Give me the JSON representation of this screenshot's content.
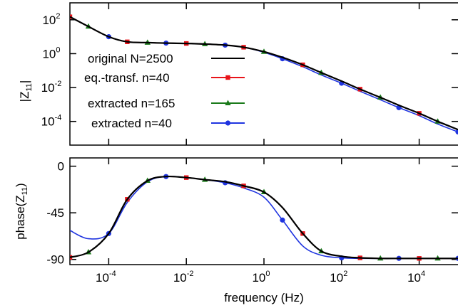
{
  "chart_data": [
    {
      "type": "line",
      "panel": "top",
      "ylabel": "|Z",
      "ylabel_sub": "11",
      "ylabel_suffix": "|",
      "x_scale": "log",
      "y_scale": "log",
      "xlim": [
        1e-05,
        100000
      ],
      "ylim": [
        4e-06,
        1000
      ],
      "y_ticks": [
        {
          "value": 100,
          "base": "10",
          "exp": "2"
        },
        {
          "value": 1,
          "base": "10",
          "exp": "0"
        },
        {
          "value": 0.01,
          "base": "10",
          "exp": "-2"
        },
        {
          "value": 0.0001,
          "base": "10",
          "exp": "-4"
        }
      ],
      "legend_position": "left-center",
      "series": [
        {
          "name": "original N=2500",
          "color": "#000000",
          "marker": "none",
          "x": [
            1e-05,
            3e-05,
            0.0001,
            0.0003,
            0.001,
            0.003,
            0.01,
            0.03,
            0.1,
            0.3,
            1,
            3,
            10,
            30,
            100,
            300,
            1000,
            3000,
            10000,
            30000,
            100000
          ],
          "y": [
            150,
            40,
            10,
            5,
            4.5,
            4.2,
            4,
            3.7,
            3.2,
            2.4,
            1.3,
            0.6,
            0.22,
            0.075,
            0.024,
            0.008,
            0.0026,
            0.0009,
            0.0003,
            0.0001,
            3.3e-05
          ]
        },
        {
          "name": "eq.-transf. n=40",
          "color": "#e8141a",
          "marker": "square",
          "x": [
            1e-05,
            3e-05,
            0.0001,
            0.0003,
            0.001,
            0.003,
            0.01,
            0.03,
            0.1,
            0.3,
            1,
            3,
            10,
            30,
            100,
            300,
            1000,
            3000,
            10000,
            30000,
            100000
          ],
          "y": [
            150,
            40,
            10,
            5,
            4.5,
            4.2,
            4,
            3.7,
            3.2,
            2.4,
            1.3,
            0.6,
            0.22,
            0.075,
            0.024,
            0.008,
            0.0026,
            0.0009,
            0.0003,
            0.0001,
            3.3e-05
          ]
        },
        {
          "name": "extracted n=165",
          "color": "#1a7a1a",
          "marker": "triangle",
          "x": [
            1e-05,
            3e-05,
            0.0001,
            0.0003,
            0.001,
            0.003,
            0.01,
            0.03,
            0.1,
            0.3,
            1,
            3,
            10,
            30,
            100,
            300,
            1000,
            3000,
            10000,
            30000,
            100000
          ],
          "y": [
            150,
            40,
            10,
            5,
            4.5,
            4.2,
            4,
            3.7,
            3.2,
            2.4,
            1.3,
            0.6,
            0.22,
            0.075,
            0.024,
            0.008,
            0.0026,
            0.0009,
            0.0003,
            0.0001,
            3.3e-05
          ]
        },
        {
          "name": "extracted n=40",
          "color": "#1f34e0",
          "marker": "circle",
          "x": [
            1e-05,
            3e-05,
            0.0001,
            0.0003,
            0.001,
            0.003,
            0.01,
            0.03,
            0.1,
            0.3,
            1,
            3,
            10,
            30,
            100,
            300,
            1000,
            3000,
            10000,
            30000,
            100000
          ],
          "y": [
            150,
            40,
            10,
            5,
            4.5,
            4.2,
            4,
            3.7,
            3.2,
            2.4,
            1.2,
            0.5,
            0.17,
            0.055,
            0.018,
            0.006,
            0.0019,
            0.00065,
            0.00022,
            7e-05,
            2.4e-05
          ]
        }
      ]
    },
    {
      "type": "line",
      "panel": "bottom",
      "ylabel": "phase(Z",
      "ylabel_sub": "11",
      "ylabel_suffix": ")",
      "xlabel": "frequency (Hz)",
      "x_scale": "log",
      "xlim": [
        1e-05,
        100000
      ],
      "ylim": [
        -95,
        8
      ],
      "y_ticks": [
        {
          "value": 0,
          "label": "0"
        },
        {
          "value": -45,
          "label": "-45"
        },
        {
          "value": -90,
          "label": "-90"
        }
      ],
      "x_ticks": [
        {
          "value": 0.0001,
          "base": "10",
          "exp": "-4"
        },
        {
          "value": 0.01,
          "base": "10",
          "exp": "-2"
        },
        {
          "value": 1,
          "base": "10",
          "exp": "0"
        },
        {
          "value": 100,
          "base": "10",
          "exp": "2"
        },
        {
          "value": 10000,
          "base": "10",
          "exp": "4"
        }
      ],
      "series": [
        {
          "name": "original N=2500",
          "color": "#000000",
          "marker": "none",
          "x": [
            1e-05,
            3e-05,
            0.0001,
            0.0003,
            0.001,
            0.003,
            0.01,
            0.03,
            0.1,
            0.3,
            1,
            3,
            10,
            30,
            100,
            300,
            1000,
            3000,
            10000,
            30000,
            100000
          ],
          "y": [
            -88,
            -83,
            -65,
            -32,
            -14,
            -10,
            -11,
            -13,
            -15,
            -19,
            -25,
            -40,
            -65,
            -82,
            -87,
            -88.5,
            -89,
            -89,
            -89,
            -89,
            -89
          ]
        },
        {
          "name": "eq.-transf. n=40",
          "color": "#e8141a",
          "marker": "square",
          "x": [
            1e-05,
            3e-05,
            0.0001,
            0.0003,
            0.001,
            0.003,
            0.01,
            0.03,
            0.1,
            0.3,
            1,
            3,
            10,
            30,
            100,
            300,
            1000,
            3000,
            10000,
            30000,
            100000
          ],
          "y": [
            -88,
            -83,
            -65,
            -32,
            -14,
            -10,
            -11,
            -13,
            -15,
            -19,
            -25,
            -40,
            -65,
            -82,
            -87,
            -88.5,
            -89,
            -89,
            -89,
            -89,
            -89
          ]
        },
        {
          "name": "extracted n=165",
          "color": "#1a7a1a",
          "marker": "triangle",
          "x": [
            1e-05,
            3e-05,
            0.0001,
            0.0003,
            0.001,
            0.003,
            0.01,
            0.03,
            0.1,
            0.3,
            1,
            3,
            10,
            30,
            100,
            300,
            1000,
            3000,
            10000,
            30000,
            100000
          ],
          "y": [
            -88,
            -83,
            -65,
            -32,
            -14,
            -10,
            -11,
            -13,
            -15,
            -19,
            -25,
            -40,
            -65,
            -82,
            -87,
            -88.5,
            -89,
            -89,
            -89,
            -89,
            -89
          ]
        },
        {
          "name": "extracted n=40",
          "color": "#1f34e0",
          "marker": "circle",
          "x": [
            1e-05,
            3e-05,
            0.0001,
            0.0003,
            0.001,
            0.003,
            0.01,
            0.03,
            0.1,
            0.3,
            1,
            3,
            10,
            30,
            100,
            300,
            1000,
            3000,
            10000,
            30000,
            100000
          ],
          "y": [
            -62,
            -70,
            -65,
            -35,
            -15,
            -10,
            -11,
            -13,
            -16,
            -21,
            -30,
            -52,
            -77,
            -86,
            -88.5,
            -89,
            -89,
            -89,
            -89,
            -89,
            -89
          ]
        }
      ]
    }
  ]
}
